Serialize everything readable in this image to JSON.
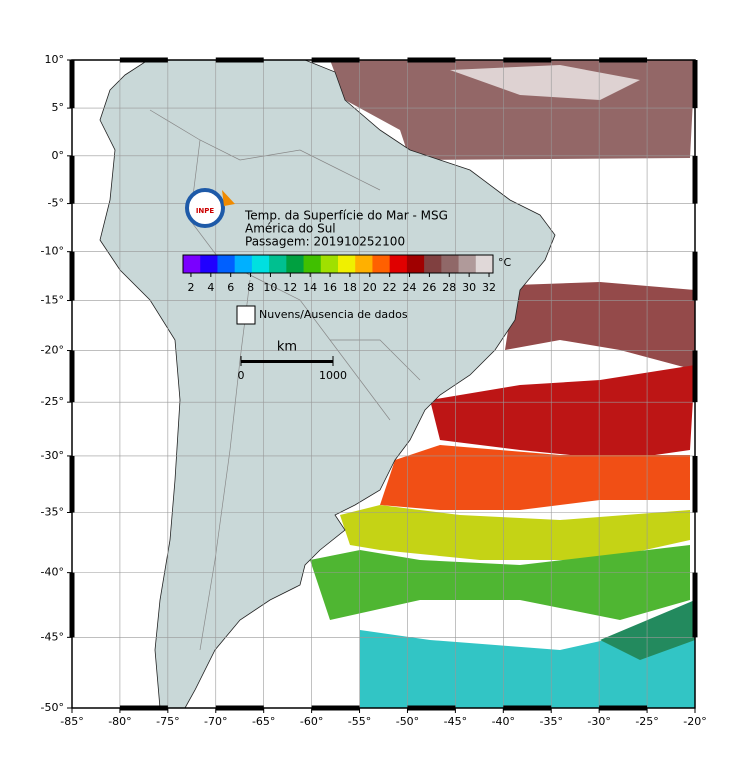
{
  "map": {
    "title_lines": [
      "Temp. da Superfície do Mar - MSG",
      "América do Sul",
      "Passagem: 201910252100"
    ],
    "logo": "INPE",
    "lon_ticks": [
      {
        "value": -85,
        "label": "-85°"
      },
      {
        "value": -80,
        "label": "-80°"
      },
      {
        "value": -75,
        "label": "-75°"
      },
      {
        "value": -70,
        "label": "-70°"
      },
      {
        "value": -65,
        "label": "-65°"
      },
      {
        "value": -60,
        "label": "-60°"
      },
      {
        "value": -55,
        "label": "-55°"
      },
      {
        "value": -50,
        "label": "-50°"
      },
      {
        "value": -45,
        "label": "-45°"
      },
      {
        "value": -40,
        "label": "-40°"
      },
      {
        "value": -35,
        "label": "-35°"
      },
      {
        "value": -30,
        "label": "-30°"
      },
      {
        "value": -25,
        "label": "-25°"
      },
      {
        "value": -20,
        "label": "-20°"
      }
    ],
    "lat_ticks": [
      {
        "value": 10,
        "label": "10°"
      },
      {
        "value": 5,
        "label": "5°"
      },
      {
        "value": 0,
        "label": "0°"
      },
      {
        "value": -5,
        "label": "-5°"
      },
      {
        "value": -10,
        "label": "-10°"
      },
      {
        "value": -15,
        "label": "-15°"
      },
      {
        "value": -20,
        "label": "-20°"
      },
      {
        "value": -25,
        "label": "-25°"
      },
      {
        "value": -30,
        "label": "-30°"
      },
      {
        "value": -35,
        "label": "-35°"
      },
      {
        "value": -40,
        "label": "-40°"
      },
      {
        "value": -45,
        "label": "-45°"
      },
      {
        "value": -50,
        "label": "-50°"
      }
    ],
    "lon_range": [
      -85,
      -20
    ],
    "lat_range": [
      10,
      -50
    ],
    "colorbar": {
      "unit": "°C",
      "range": [
        1.2,
        32.4
      ],
      "ticks": [
        2,
        4,
        6,
        8,
        10,
        12,
        14,
        16,
        18,
        20,
        22,
        24,
        26,
        28,
        30,
        32
      ],
      "colors": [
        "#7a00ff",
        "#2000ff",
        "#0060ff",
        "#00b0ff",
        "#00e0e0",
        "#00c090",
        "#00a040",
        "#40c000",
        "#a0e000",
        "#f0f000",
        "#ffb000",
        "#ff6000",
        "#e00000",
        "#a00000",
        "#804040",
        "#906868",
        "#b09a9a",
        "#e0d8d8"
      ]
    },
    "legend": "Nuvens/Ausencia de dados",
    "scale": {
      "unit": "km",
      "ticks": [
        0,
        1000
      ]
    }
  }
}
